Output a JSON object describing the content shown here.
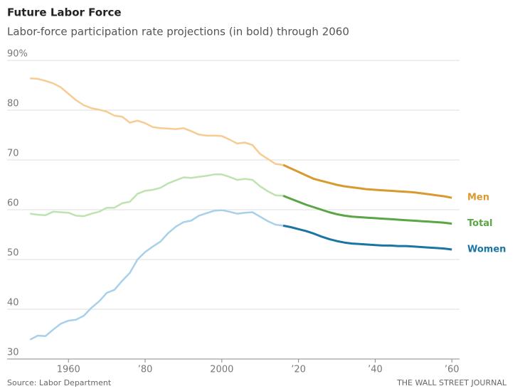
{
  "chart_data": {
    "type": "line",
    "title": "Future Labor Force",
    "subtitle": "Labor-force participation rate projections (in bold) through 2060",
    "source": "Source: Labor Department",
    "credit": "THE WALL STREET JOURNAL",
    "projection_start": 2016,
    "x": [
      1950,
      1952,
      1954,
      1956,
      1958,
      1960,
      1962,
      1964,
      1966,
      1968,
      1970,
      1972,
      1974,
      1976,
      1978,
      1980,
      1982,
      1984,
      1986,
      1988,
      1990,
      1992,
      1994,
      1996,
      1998,
      2000,
      2002,
      2004,
      2006,
      2008,
      2010,
      2012,
      2014,
      2016,
      2018,
      2020,
      2022,
      2024,
      2026,
      2028,
      2030,
      2032,
      2034,
      2036,
      2038,
      2040,
      2042,
      2044,
      2046,
      2048,
      2050,
      2052,
      2054,
      2056,
      2058,
      2060
    ],
    "series": [
      {
        "name": "Men",
        "color": "#d89a2f",
        "history_color": "#f6cc93",
        "values": [
          86.4,
          86.3,
          85.9,
          85.4,
          84.6,
          83.3,
          82.0,
          81.0,
          80.4,
          80.1,
          79.7,
          78.9,
          78.7,
          77.5,
          77.9,
          77.4,
          76.6,
          76.4,
          76.3,
          76.2,
          76.4,
          75.8,
          75.1,
          74.9,
          74.9,
          74.8,
          74.1,
          73.3,
          73.5,
          73.0,
          71.2,
          70.2,
          69.2,
          69.0,
          68.3,
          67.6,
          66.9,
          66.2,
          65.8,
          65.4,
          65.0,
          64.7,
          64.5,
          64.3,
          64.1,
          64.0,
          63.9,
          63.8,
          63.7,
          63.6,
          63.5,
          63.3,
          63.1,
          62.9,
          62.7,
          62.4
        ]
      },
      {
        "name": "Total",
        "color": "#5aa645",
        "history_color": "#bde3b0",
        "values": [
          59.2,
          59.0,
          58.9,
          59.6,
          59.5,
          59.4,
          58.8,
          58.7,
          59.2,
          59.6,
          60.4,
          60.4,
          61.3,
          61.6,
          63.2,
          63.8,
          64.0,
          64.4,
          65.3,
          65.9,
          66.5,
          66.4,
          66.6,
          66.8,
          67.1,
          67.1,
          66.6,
          66.0,
          66.2,
          66.0,
          64.7,
          63.7,
          62.9,
          62.8,
          62.2,
          61.6,
          61.0,
          60.5,
          60.0,
          59.5,
          59.1,
          58.8,
          58.6,
          58.5,
          58.4,
          58.3,
          58.2,
          58.1,
          58.0,
          57.9,
          57.8,
          57.7,
          57.6,
          57.5,
          57.4,
          57.2
        ]
      },
      {
        "name": "Women",
        "color": "#1a75a3",
        "history_color": "#a8d0ea",
        "values": [
          33.9,
          34.7,
          34.6,
          35.9,
          37.1,
          37.7,
          37.9,
          38.7,
          40.3,
          41.6,
          43.3,
          43.9,
          45.7,
          47.3,
          50.0,
          51.5,
          52.6,
          53.6,
          55.3,
          56.6,
          57.5,
          57.8,
          58.8,
          59.3,
          59.8,
          59.9,
          59.6,
          59.2,
          59.4,
          59.5,
          58.6,
          57.7,
          57.0,
          56.8,
          56.5,
          56.1,
          55.7,
          55.2,
          54.6,
          54.1,
          53.7,
          53.4,
          53.2,
          53.1,
          53.0,
          52.9,
          52.8,
          52.8,
          52.7,
          52.7,
          52.6,
          52.5,
          52.4,
          52.3,
          52.2,
          52.0
        ]
      }
    ],
    "xlim": [
      1944,
      2062
    ],
    "xticks": [
      1960,
      {
        "value": 1980,
        "label": "’80"
      },
      2000,
      {
        "value": 2020,
        "label": "’20"
      },
      {
        "value": 2040,
        "label": "’40"
      },
      {
        "value": 2060,
        "label": "’60"
      }
    ],
    "ylim": [
      30,
      90
    ],
    "yticks": [
      30,
      40,
      50,
      60,
      70,
      80,
      {
        "value": 90,
        "label": "90%"
      }
    ],
    "grid": true
  }
}
